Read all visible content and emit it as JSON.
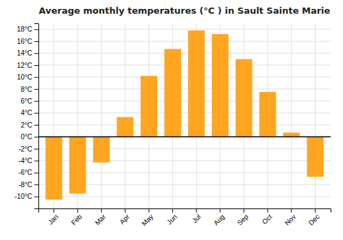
{
  "chart_data": {
    "type": "bar",
    "title": "Average monthly temperatures (°C ) in Sault Sainte Marie",
    "categories": [
      "Jan",
      "Feb",
      "Mar",
      "Apr",
      "May",
      "Jun",
      "Jul",
      "Aug",
      "Sep",
      "Oct",
      "Nov",
      "Dec"
    ],
    "values": [
      -10.5,
      -9.5,
      -4.3,
      3.3,
      10.2,
      14.7,
      17.8,
      17.2,
      13.0,
      7.5,
      0.7,
      -6.7
    ],
    "color": "#FFA520",
    "ylim": [
      -12,
      19
    ],
    "yticks": [
      {
        "value": -10,
        "label": "-10°C"
      },
      {
        "value": -8,
        "label": "-8°C"
      },
      {
        "value": -6,
        "label": "-6°C"
      },
      {
        "value": -4,
        "label": "-4°C"
      },
      {
        "value": -2,
        "label": "-2°C"
      },
      {
        "value": 0,
        "label": "0°C"
      },
      {
        "value": 2,
        "label": "2°C"
      },
      {
        "value": 4,
        "label": "4°C"
      },
      {
        "value": 6,
        "label": "6°C"
      },
      {
        "value": 8,
        "label": "8°C"
      },
      {
        "value": 10,
        "label": "10°C"
      },
      {
        "value": 12,
        "label": "12°C"
      },
      {
        "value": 14,
        "label": "14°C"
      },
      {
        "value": 16,
        "label": "16°C"
      },
      {
        "value": 18,
        "label": "18°C"
      }
    ],
    "grid": true
  }
}
